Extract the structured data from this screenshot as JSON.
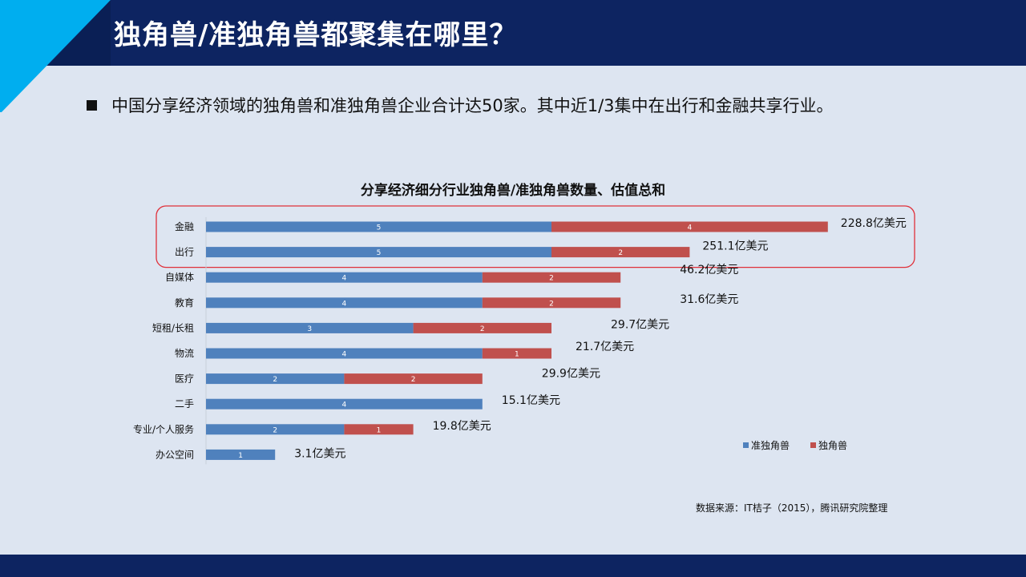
{
  "title": "独角兽/准独角兽都聚集在哪里？",
  "bullet": "中国分享经济领域的独角兽和准独角兽企业合计达50家。其中近1/3集中在出行和金融共享行业。",
  "source": "数据来源：IT桔子（2015），腾讯研究院整理",
  "colors": {
    "header": "#0d2461",
    "accent": "#00aeef",
    "series1": "#4f81bd",
    "series2": "#c0504d",
    "highlight": "#e0303a"
  },
  "chart_data": {
    "type": "bar",
    "orientation": "horizontal",
    "stacked": true,
    "title": "分享经济细分行业独角兽/准独角兽数量、估值总和",
    "categories": [
      "金融",
      "出行",
      "自媒体",
      "教育",
      "短租/长租",
      "物流",
      "医疗",
      "二手",
      "专业/个人服务",
      "办公空间"
    ],
    "series": [
      {
        "name": "准独角兽",
        "color": "#4f81bd",
        "values": [
          5,
          5,
          4,
          4,
          3,
          4,
          2,
          4,
          2,
          1
        ]
      },
      {
        "name": "独角兽",
        "color": "#c0504d",
        "values": [
          4,
          2,
          2,
          2,
          2,
          1,
          2,
          0,
          1,
          0
        ]
      }
    ],
    "valuations": [
      "228.8亿美元",
      "251.1亿美元",
      "46.2亿美元",
      "31.6亿美元",
      "29.7亿美元",
      "21.7亿美元",
      "29.9亿美元",
      "15.1亿美元",
      "19.8亿美元",
      "3.1亿美元"
    ],
    "highlighted_categories": [
      "金融",
      "出行"
    ],
    "legend_position": "right",
    "xlim": [
      0,
      10
    ]
  }
}
